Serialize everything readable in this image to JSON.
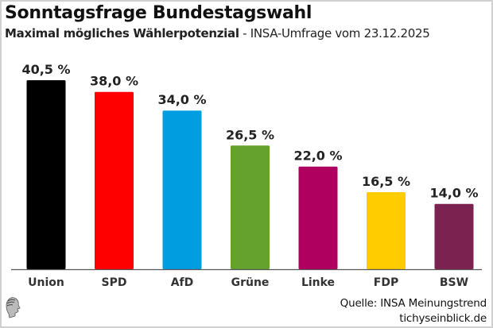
{
  "header": {
    "title": "Sonntagsfrage Bundestagswahl",
    "subtitle_bold": "Maximal mögliches Wählerpotenzial",
    "subtitle_rest": " - INSA-Umfrage vom 23.12.2025"
  },
  "footer": {
    "source_line": "Quelle: INSA Meinungstrend",
    "site": "tichyseinblick.de",
    "logo_icon": "greek-head-icon"
  },
  "chart_data": {
    "type": "bar",
    "title": "Sonntagsfrage Bundestagswahl",
    "subtitle": "Maximal mögliches Wählerpotenzial - INSA-Umfrage vom 23.12.2025",
    "xlabel": "",
    "ylabel": "",
    "ylim": [
      0,
      42
    ],
    "grid": false,
    "legend": "none",
    "unit": "%",
    "categories": [
      "Union",
      "SPD",
      "AfD",
      "Grüne",
      "Linke",
      "FDP",
      "BSW"
    ],
    "values": [
      40.5,
      38.0,
      34.0,
      26.5,
      22.0,
      16.5,
      14.0
    ],
    "labels": [
      "40,5 %",
      "38,0 %",
      "34,0 %",
      "26,5 %",
      "22,0 %",
      "16,5 %",
      "14,0 %"
    ],
    "colors": [
      "#000000",
      "#ff0000",
      "#009ee0",
      "#64a12d",
      "#b0005f",
      "#ffcc00",
      "#7c2250"
    ]
  }
}
